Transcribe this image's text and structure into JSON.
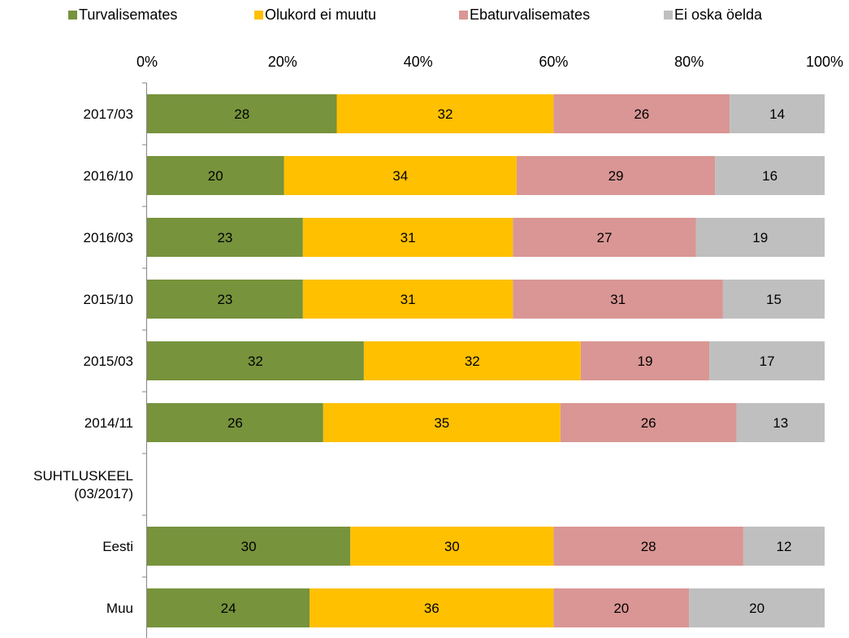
{
  "chart_data": {
    "type": "bar",
    "orientation": "horizontal",
    "stacked": "percent",
    "title": "",
    "xlabel": "",
    "ylabel": "",
    "xlim": [
      0,
      100
    ],
    "x_tick_labels": [
      "0%",
      "20%",
      "40%",
      "60%",
      "80%",
      "100%"
    ],
    "x_ticks": [
      0,
      20,
      40,
      60,
      80,
      100
    ],
    "x_axis_position": "top",
    "grid": false,
    "legend": {
      "placement": "top"
    },
    "categories": [
      "2017/03",
      "2016/10",
      "2016/03",
      "2015/10",
      "2015/03",
      "2014/11",
      "SUHTLUSKEEL\n(03/2017)",
      "Eesti",
      "Muu"
    ],
    "series": [
      {
        "name": "Turvalisemates",
        "color": "#77933c",
        "values": [
          28,
          20,
          23,
          23,
          32,
          26,
          null,
          30,
          24
        ]
      },
      {
        "name": "Olukord ei muutu",
        "color": "#ffc000",
        "values": [
          32,
          34,
          31,
          31,
          32,
          35,
          null,
          30,
          36
        ]
      },
      {
        "name": "Ebaturvalisemates",
        "color": "#d99694",
        "values": [
          26,
          29,
          27,
          31,
          19,
          26,
          null,
          28,
          20
        ]
      },
      {
        "name": "Ei oska öelda",
        "color": "#bfbfbf",
        "values": [
          14,
          16,
          19,
          15,
          17,
          13,
          null,
          12,
          20
        ]
      }
    ]
  }
}
